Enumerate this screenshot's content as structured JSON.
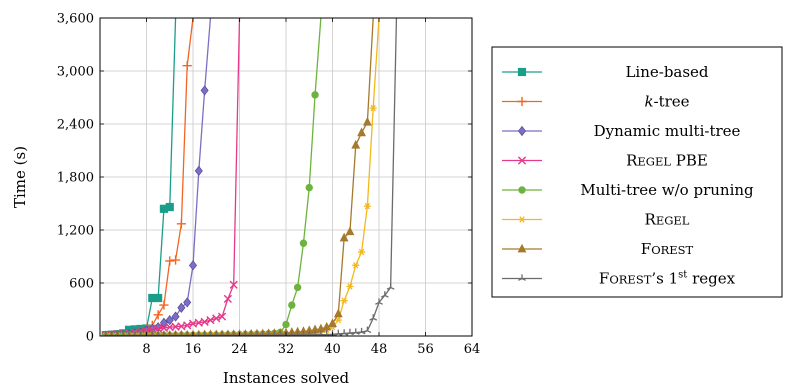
{
  "chart_data": {
    "type": "line",
    "xlabel": "Instances solved",
    "ylabel": "Time (s)",
    "xlim": [
      0,
      64
    ],
    "ylim": [
      0,
      3600
    ],
    "x_ticks": [
      8,
      16,
      24,
      32,
      40,
      48,
      56,
      64
    ],
    "x_tick_labels": [
      "8",
      "16",
      "24",
      "32",
      "40",
      "48",
      "56",
      "64"
    ],
    "y_ticks": [
      0,
      600,
      1200,
      1800,
      2400,
      3000,
      3600
    ],
    "y_tick_labels": [
      "0",
      "600",
      "1,200",
      "1,800",
      "2,400",
      "3,000",
      "3,600"
    ],
    "grid": true,
    "legend_position": "right",
    "series": [
      {
        "name": "Line-based",
        "color": "#1a9e8a",
        "marker": "square",
        "points": [
          [
            1,
            10
          ],
          [
            2,
            15
          ],
          [
            3,
            20
          ],
          [
            4,
            30
          ],
          [
            5,
            70
          ],
          [
            6,
            75
          ],
          [
            7,
            80
          ],
          [
            8,
            85
          ],
          [
            9,
            430
          ],
          [
            10,
            430
          ],
          [
            11,
            1440
          ],
          [
            12,
            1460
          ],
          [
            13,
            3600
          ]
        ]
      },
      {
        "name": "k-tree",
        "color": "#f26522",
        "marker": "plus",
        "points": [
          [
            1,
            5
          ],
          [
            2,
            8
          ],
          [
            3,
            10
          ],
          [
            4,
            15
          ],
          [
            5,
            20
          ],
          [
            6,
            30
          ],
          [
            7,
            50
          ],
          [
            8,
            80
          ],
          [
            9,
            120
          ],
          [
            10,
            240
          ],
          [
            11,
            350
          ],
          [
            12,
            850
          ],
          [
            13,
            860
          ],
          [
            14,
            1270
          ],
          [
            15,
            3060
          ],
          [
            16,
            3600
          ]
        ]
      },
      {
        "name": "Dynamic multi-tree",
        "color": "#7a6fc4",
        "marker": "diamond",
        "points": [
          [
            1,
            5
          ],
          [
            2,
            8
          ],
          [
            3,
            10
          ],
          [
            4,
            12
          ],
          [
            5,
            20
          ],
          [
            6,
            30
          ],
          [
            7,
            40
          ],
          [
            8,
            60
          ],
          [
            9,
            80
          ],
          [
            10,
            100
          ],
          [
            11,
            150
          ],
          [
            12,
            180
          ],
          [
            13,
            220
          ],
          [
            14,
            320
          ],
          [
            15,
            380
          ],
          [
            16,
            800
          ],
          [
            17,
            1870
          ],
          [
            18,
            2780
          ],
          [
            19,
            3600
          ]
        ]
      },
      {
        "name": "Regel PBE",
        "color": "#e6398a",
        "marker": "x",
        "points": [
          [
            1,
            10
          ],
          [
            2,
            15
          ],
          [
            3,
            20
          ],
          [
            4,
            25
          ],
          [
            5,
            30
          ],
          [
            6,
            40
          ],
          [
            7,
            50
          ],
          [
            8,
            60
          ],
          [
            9,
            70
          ],
          [
            10,
            80
          ],
          [
            11,
            90
          ],
          [
            12,
            100
          ],
          [
            13,
            105
          ],
          [
            14,
            110
          ],
          [
            15,
            120
          ],
          [
            16,
            140
          ],
          [
            17,
            150
          ],
          [
            18,
            160
          ],
          [
            19,
            180
          ],
          [
            20,
            200
          ],
          [
            21,
            220
          ],
          [
            22,
            420
          ],
          [
            23,
            580
          ],
          [
            24,
            3600
          ]
        ]
      },
      {
        "name": "Multi-tree w/o pruning",
        "color": "#6db33f",
        "marker": "circle",
        "points": [
          [
            1,
            3
          ],
          [
            2,
            3
          ],
          [
            3,
            4
          ],
          [
            4,
            4
          ],
          [
            5,
            5
          ],
          [
            6,
            5
          ],
          [
            7,
            6
          ],
          [
            8,
            6
          ],
          [
            9,
            7
          ],
          [
            10,
            7
          ],
          [
            11,
            8
          ],
          [
            12,
            8
          ],
          [
            13,
            9
          ],
          [
            14,
            9
          ],
          [
            15,
            10
          ],
          [
            16,
            10
          ],
          [
            17,
            11
          ],
          [
            18,
            11
          ],
          [
            19,
            12
          ],
          [
            20,
            12
          ],
          [
            21,
            13
          ],
          [
            22,
            14
          ],
          [
            23,
            15
          ],
          [
            24,
            16
          ],
          [
            25,
            17
          ],
          [
            26,
            18
          ],
          [
            27,
            20
          ],
          [
            28,
            22
          ],
          [
            29,
            25
          ],
          [
            30,
            30
          ],
          [
            31,
            40
          ],
          [
            32,
            130
          ],
          [
            33,
            350
          ],
          [
            34,
            550
          ],
          [
            35,
            1050
          ],
          [
            36,
            1680
          ],
          [
            37,
            2730
          ],
          [
            38,
            3600
          ]
        ]
      },
      {
        "name": "Regel",
        "color": "#f2b81c",
        "marker": "asterisk",
        "points": [
          [
            1,
            2
          ],
          [
            2,
            2
          ],
          [
            3,
            2
          ],
          [
            4,
            3
          ],
          [
            5,
            3
          ],
          [
            6,
            3
          ],
          [
            7,
            3
          ],
          [
            8,
            4
          ],
          [
            9,
            4
          ],
          [
            10,
            4
          ],
          [
            11,
            4
          ],
          [
            12,
            5
          ],
          [
            13,
            5
          ],
          [
            14,
            5
          ],
          [
            15,
            5
          ],
          [
            16,
            6
          ],
          [
            17,
            6
          ],
          [
            18,
            6
          ],
          [
            19,
            7
          ],
          [
            20,
            7
          ],
          [
            21,
            7
          ],
          [
            22,
            8
          ],
          [
            23,
            8
          ],
          [
            24,
            9
          ],
          [
            25,
            9
          ],
          [
            26,
            10
          ],
          [
            27,
            10
          ],
          [
            28,
            11
          ],
          [
            29,
            12
          ],
          [
            30,
            13
          ],
          [
            31,
            14
          ],
          [
            32,
            16
          ],
          [
            33,
            18
          ],
          [
            34,
            20
          ],
          [
            35,
            22
          ],
          [
            36,
            25
          ],
          [
            37,
            30
          ],
          [
            38,
            45
          ],
          [
            39,
            70
          ],
          [
            40,
            100
          ],
          [
            41,
            180
          ],
          [
            42,
            400
          ],
          [
            43,
            560
          ],
          [
            44,
            800
          ],
          [
            45,
            950
          ],
          [
            46,
            1470
          ],
          [
            47,
            2580
          ],
          [
            48,
            3600
          ]
        ]
      },
      {
        "name": "Forest",
        "color": "#a6792c",
        "marker": "triangle",
        "points": [
          [
            1,
            3
          ],
          [
            2,
            3
          ],
          [
            3,
            4
          ],
          [
            4,
            4
          ],
          [
            5,
            5
          ],
          [
            6,
            5
          ],
          [
            7,
            6
          ],
          [
            8,
            6
          ],
          [
            9,
            7
          ],
          [
            10,
            7
          ],
          [
            11,
            8
          ],
          [
            12,
            8
          ],
          [
            13,
            9
          ],
          [
            14,
            9
          ],
          [
            15,
            10
          ],
          [
            16,
            11
          ],
          [
            17,
            11
          ],
          [
            18,
            12
          ],
          [
            19,
            13
          ],
          [
            20,
            14
          ],
          [
            21,
            14
          ],
          [
            22,
            15
          ],
          [
            23,
            16
          ],
          [
            24,
            17
          ],
          [
            25,
            18
          ],
          [
            26,
            20
          ],
          [
            27,
            22
          ],
          [
            28,
            24
          ],
          [
            29,
            26
          ],
          [
            30,
            28
          ],
          [
            31,
            30
          ],
          [
            32,
            35
          ],
          [
            33,
            40
          ],
          [
            34,
            45
          ],
          [
            35,
            50
          ],
          [
            36,
            60
          ],
          [
            37,
            70
          ],
          [
            38,
            80
          ],
          [
            39,
            100
          ],
          [
            40,
            140
          ],
          [
            41,
            250
          ],
          [
            42,
            1110
          ],
          [
            43,
            1180
          ],
          [
            44,
            2160
          ],
          [
            45,
            2300
          ],
          [
            46,
            2420
          ],
          [
            47,
            3600
          ]
        ]
      },
      {
        "name": "Forest's 1st regex",
        "color": "#6b6b6b",
        "marker": "star",
        "points": [
          [
            1,
            1
          ],
          [
            2,
            1
          ],
          [
            3,
            1
          ],
          [
            4,
            1
          ],
          [
            5,
            2
          ],
          [
            6,
            2
          ],
          [
            7,
            2
          ],
          [
            8,
            2
          ],
          [
            9,
            3
          ],
          [
            10,
            3
          ],
          [
            11,
            3
          ],
          [
            12,
            4
          ],
          [
            13,
            4
          ],
          [
            14,
            4
          ],
          [
            15,
            5
          ],
          [
            16,
            5
          ],
          [
            17,
            5
          ],
          [
            18,
            6
          ],
          [
            19,
            6
          ],
          [
            20,
            6
          ],
          [
            21,
            7
          ],
          [
            22,
            7
          ],
          [
            23,
            7
          ],
          [
            24,
            8
          ],
          [
            25,
            8
          ],
          [
            26,
            8
          ],
          [
            27,
            9
          ],
          [
            28,
            9
          ],
          [
            29,
            10
          ],
          [
            30,
            10
          ],
          [
            31,
            11
          ],
          [
            32,
            11
          ],
          [
            33,
            12
          ],
          [
            34,
            12
          ],
          [
            35,
            13
          ],
          [
            36,
            14
          ],
          [
            37,
            15
          ],
          [
            38,
            16
          ],
          [
            39,
            17
          ],
          [
            40,
            20
          ],
          [
            41,
            25
          ],
          [
            42,
            30
          ],
          [
            43,
            35
          ],
          [
            44,
            40
          ],
          [
            45,
            45
          ],
          [
            46,
            60
          ],
          [
            47,
            200
          ],
          [
            48,
            380
          ],
          [
            49,
            460
          ],
          [
            50,
            550
          ],
          [
            51,
            3600
          ]
        ]
      }
    ]
  }
}
